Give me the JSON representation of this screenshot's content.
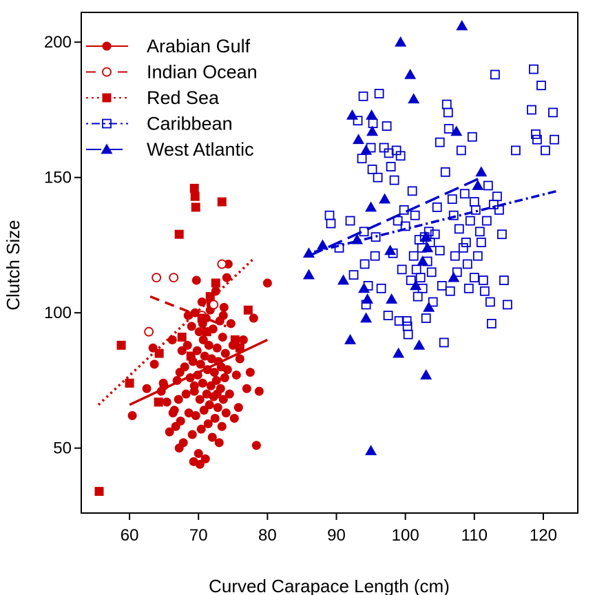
{
  "chart_data": {
    "type": "scatter",
    "xlabel": "Curved Carapace Length (cm)",
    "ylabel": "Clutch Size",
    "xlim": [
      53,
      125
    ],
    "ylim": [
      26,
      211
    ],
    "xticks": [
      60,
      70,
      80,
      90,
      100,
      110,
      120
    ],
    "yticks": [
      50,
      100,
      150,
      200
    ],
    "grid": false,
    "legend_position": "top-left",
    "series": [
      {
        "name": "Arabian Gulf",
        "color": "#cc0000",
        "marker": "filled-circle",
        "line_style": "solid",
        "fit": {
          "x": [
            60,
            80
          ],
          "y": [
            66,
            90
          ]
        },
        "points": [
          [
            60.4,
            62
          ],
          [
            62.5,
            72
          ],
          [
            63.4,
            87
          ],
          [
            63.6,
            81
          ],
          [
            64.6,
            71
          ],
          [
            65,
            73
          ],
          [
            65.4,
            67
          ],
          [
            65.8,
            56
          ],
          [
            66.2,
            90
          ],
          [
            66.5,
            64
          ],
          [
            66.7,
            58
          ],
          [
            66.9,
            75
          ],
          [
            67.1,
            68
          ],
          [
            67.3,
            78
          ],
          [
            67.4,
            60
          ],
          [
            67.6,
            86
          ],
          [
            67.8,
            52
          ],
          [
            68,
            80
          ],
          [
            68.2,
            70
          ],
          [
            68.4,
            88
          ],
          [
            68.6,
            63
          ],
          [
            68.8,
            76
          ],
          [
            69,
            95
          ],
          [
            69.1,
            55
          ],
          [
            69.2,
            82
          ],
          [
            69.3,
            45
          ],
          [
            69.4,
            71
          ],
          [
            69.5,
            100
          ],
          [
            69.6,
            62
          ],
          [
            69.7,
            112
          ],
          [
            69.8,
            86
          ],
          [
            69.9,
            77
          ],
          [
            70,
            48
          ],
          [
            70.1,
            93
          ],
          [
            70.2,
            68
          ],
          [
            70.3,
            81
          ],
          [
            70.4,
            57
          ],
          [
            70.5,
            104
          ],
          [
            70.6,
            74
          ],
          [
            70.7,
            90
          ],
          [
            70.8,
            64
          ],
          [
            70.9,
            84
          ],
          [
            71,
            46
          ],
          [
            71.1,
            98
          ],
          [
            71.2,
            70
          ],
          [
            71.3,
            79
          ],
          [
            71.4,
            59
          ],
          [
            71.5,
            88
          ],
          [
            71.6,
            66
          ],
          [
            71.7,
            101
          ],
          [
            71.8,
            73
          ],
          [
            71.9,
            83
          ],
          [
            72,
            54
          ],
          [
            72.1,
            94
          ],
          [
            72.2,
            69
          ],
          [
            72.3,
            78
          ],
          [
            72.4,
            61
          ],
          [
            72.5,
            108
          ],
          [
            72.6,
            75
          ],
          [
            72.7,
            87
          ],
          [
            72.8,
            65
          ],
          [
            72.9,
            82
          ],
          [
            73,
            52
          ],
          [
            73.1,
            97
          ],
          [
            73.2,
            72
          ],
          [
            73.3,
            80
          ],
          [
            73.4,
            58
          ],
          [
            73.5,
            91
          ],
          [
            73.6,
            68
          ],
          [
            73.7,
            102
          ],
          [
            73.8,
            76
          ],
          [
            73.9,
            85
          ],
          [
            74,
            63
          ],
          [
            74.1,
            113
          ],
          [
            74.2,
            79
          ],
          [
            74.3,
            118
          ],
          [
            74.5,
            70
          ],
          [
            74.7,
            96
          ],
          [
            75,
            88
          ],
          [
            75.2,
            61
          ],
          [
            75.5,
            77
          ],
          [
            75.8,
            65
          ],
          [
            76,
            83
          ],
          [
            76.5,
            90
          ],
          [
            77,
            72
          ],
          [
            77.5,
            78
          ],
          [
            78,
            98
          ],
          [
            78.4,
            51
          ],
          [
            78.8,
            71
          ],
          [
            80,
            111
          ],
          [
            68.5,
            99
          ],
          [
            69.4,
            73
          ],
          [
            70.6,
            96
          ],
          [
            71.8,
            103
          ],
          [
            72.7,
            70
          ],
          [
            73.6,
            99
          ],
          [
            67.2,
            50
          ],
          [
            66.3,
            63
          ],
          [
            64.9,
            74
          ],
          [
            70.2,
            44
          ]
        ]
      },
      {
        "name": "Indian Ocean",
        "color": "#cc0000",
        "marker": "open-circle",
        "line_style": "dashed",
        "fit": {
          "x": [
            63,
            74
          ],
          "y": [
            106,
            95
          ]
        },
        "points": [
          [
            62.8,
            93
          ],
          [
            63.9,
            113
          ],
          [
            66.4,
            113
          ],
          [
            73.4,
            118
          ],
          [
            70.5,
            99
          ],
          [
            72.2,
            103
          ]
        ]
      },
      {
        "name": "Red Sea",
        "color": "#cc0000",
        "marker": "filled-square",
        "line_style": "dotted",
        "fit": {
          "x": [
            55.5,
            78
          ],
          "y": [
            66,
            120
          ]
        },
        "points": [
          [
            55.6,
            34
          ],
          [
            58.8,
            88
          ],
          [
            60,
            74
          ],
          [
            64.2,
            67
          ],
          [
            64.3,
            85
          ],
          [
            67.2,
            129
          ],
          [
            67.6,
            91
          ],
          [
            68.9,
            84
          ],
          [
            69.4,
            146
          ],
          [
            69.5,
            143
          ],
          [
            69.6,
            139
          ],
          [
            70.5,
            98
          ],
          [
            71.2,
            93
          ],
          [
            71.7,
            106
          ],
          [
            72.5,
            111
          ],
          [
            73.4,
            141
          ],
          [
            75.3,
            90
          ],
          [
            76,
            87
          ],
          [
            77.2,
            101
          ]
        ]
      },
      {
        "name": "Caribbean",
        "color": "#0000cc",
        "marker": "open-square",
        "line_style": "dot-dash",
        "fit": {
          "x": [
            86,
            122
          ],
          "y": [
            122,
            145
          ]
        },
        "points": [
          [
            89,
            136
          ],
          [
            89.2,
            133
          ],
          [
            90.4,
            124
          ],
          [
            92,
            134
          ],
          [
            92.5,
            114
          ],
          [
            93.1,
            171
          ],
          [
            93.7,
            157
          ],
          [
            93.9,
            180
          ],
          [
            94,
            130
          ],
          [
            94.1,
            118
          ],
          [
            94.6,
            110
          ],
          [
            95,
            161
          ],
          [
            95.2,
            153
          ],
          [
            95.3,
            170
          ],
          [
            95.6,
            121
          ],
          [
            95.7,
            128
          ],
          [
            96,
            150
          ],
          [
            96.2,
            181
          ],
          [
            96.5,
            109
          ],
          [
            96.9,
            161
          ],
          [
            97.3,
            169
          ],
          [
            97.6,
            159
          ],
          [
            97.9,
            154
          ],
          [
            98.2,
            122
          ],
          [
            98.4,
            149
          ],
          [
            98.7,
            160
          ],
          [
            98.9,
            134
          ],
          [
            99.1,
            97
          ],
          [
            99.3,
            158
          ],
          [
            99.5,
            116
          ],
          [
            99.8,
            138
          ],
          [
            100,
            132
          ],
          [
            100.2,
            97
          ],
          [
            100.3,
            95
          ],
          [
            100.4,
            92
          ],
          [
            100.8,
            112
          ],
          [
            101,
            145
          ],
          [
            101.2,
            121
          ],
          [
            101.4,
            136
          ],
          [
            101.6,
            116
          ],
          [
            101.8,
            106
          ],
          [
            102,
            127
          ],
          [
            102.2,
            113
          ],
          [
            102.4,
            124
          ],
          [
            102.5,
            109
          ],
          [
            102.8,
            128
          ],
          [
            103,
            98
          ],
          [
            103.2,
            119
          ],
          [
            103.4,
            130
          ],
          [
            103.6,
            126
          ],
          [
            103.8,
            115
          ],
          [
            104,
            104
          ],
          [
            104.3,
            129
          ],
          [
            104.6,
            139
          ],
          [
            105,
            163
          ],
          [
            105.3,
            110
          ],
          [
            105.6,
            89
          ],
          [
            105.8,
            152
          ],
          [
            106,
            177
          ],
          [
            106.2,
            174
          ],
          [
            106.3,
            168
          ],
          [
            106.5,
            108
          ],
          [
            106.8,
            142
          ],
          [
            107,
            136
          ],
          [
            107.2,
            121
          ],
          [
            107.5,
            115
          ],
          [
            107.8,
            131
          ],
          [
            108.1,
            160
          ],
          [
            108.4,
            124
          ],
          [
            108.6,
            144
          ],
          [
            108.8,
            126
          ],
          [
            109,
            118
          ],
          [
            109.2,
            109
          ],
          [
            109.4,
            134
          ],
          [
            109.7,
            165
          ],
          [
            110,
            141
          ],
          [
            110.2,
            138
          ],
          [
            110.5,
            121
          ],
          [
            110.8,
            130
          ],
          [
            111,
            126
          ],
          [
            111.3,
            112
          ],
          [
            111.5,
            108
          ],
          [
            111.8,
            134
          ],
          [
            112,
            147
          ],
          [
            112.3,
            104
          ],
          [
            112.5,
            96
          ],
          [
            112.8,
            140
          ],
          [
            113,
            188
          ],
          [
            113.3,
            143
          ],
          [
            113.6,
            138
          ],
          [
            114,
            129
          ],
          [
            114.3,
            112
          ],
          [
            114.8,
            103
          ],
          [
            116,
            160
          ],
          [
            118.3,
            175
          ],
          [
            118.6,
            190
          ],
          [
            118.9,
            166
          ],
          [
            119.1,
            164
          ],
          [
            119.7,
            184
          ],
          [
            120.3,
            160
          ],
          [
            121.4,
            174
          ],
          [
            121.6,
            164
          ],
          [
            94.3,
            103
          ],
          [
            97.5,
            99
          ],
          [
            110,
            113
          ],
          [
            105,
            123
          ]
        ]
      },
      {
        "name": "West Atlantic",
        "color": "#0000cc",
        "marker": "filled-triangle",
        "line_style": "long-dash",
        "fit": {
          "x": [
            86,
            111
          ],
          "y": [
            121,
            150
          ]
        },
        "points": [
          [
            86,
            122
          ],
          [
            86,
            114
          ],
          [
            88,
            125
          ],
          [
            91,
            112
          ],
          [
            92,
            90
          ],
          [
            92.3,
            173
          ],
          [
            93,
            127
          ],
          [
            93.2,
            164
          ],
          [
            94,
            109
          ],
          [
            94.3,
            160
          ],
          [
            94.3,
            98
          ],
          [
            94.5,
            105
          ],
          [
            95,
            49
          ],
          [
            95,
            139
          ],
          [
            95.1,
            173
          ],
          [
            95.2,
            167
          ],
          [
            97,
            142
          ],
          [
            97.8,
            123
          ],
          [
            98,
            105
          ],
          [
            99,
            85
          ],
          [
            99.3,
            200
          ],
          [
            100.7,
            188
          ],
          [
            101.2,
            179
          ],
          [
            101.5,
            110
          ],
          [
            102,
            88
          ],
          [
            102.5,
            119
          ],
          [
            103,
            77
          ],
          [
            103,
            128
          ],
          [
            103.2,
            124
          ],
          [
            103.4,
            102
          ],
          [
            107,
            113
          ],
          [
            107.4,
            167
          ],
          [
            108.2,
            206
          ],
          [
            110.5,
            147
          ],
          [
            111,
            152
          ]
        ]
      }
    ]
  }
}
